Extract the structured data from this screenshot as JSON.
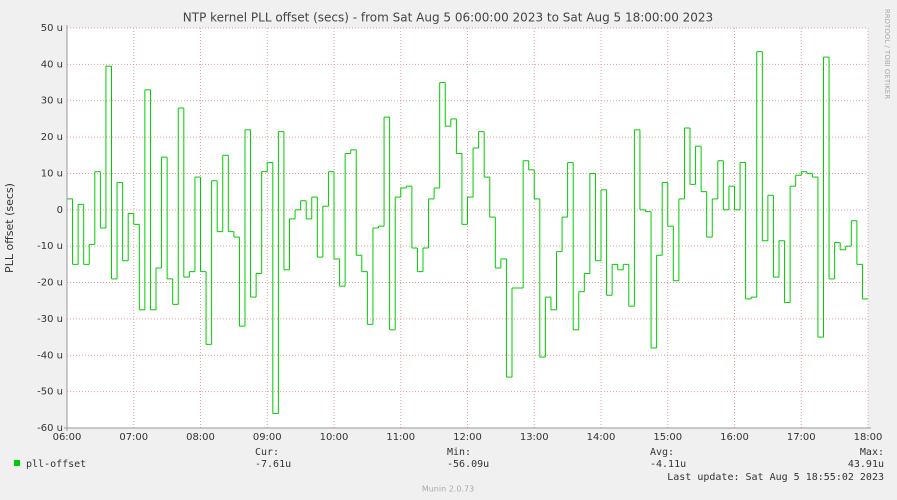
{
  "chart_data": {
    "type": "step-line",
    "title": "NTP kernel PLL offset (secs) - from Sat Aug  5 06:00:00 2023 to Sat Aug  5 18:00:00 2023",
    "y_label": "PLL offset (secs)",
    "side_text": "RRDTOOL / TOBI OETIKER",
    "footer": "Munin 2.0.73",
    "last_update": "Last update: Sat Aug  5 18:55:02 2023",
    "grid": true,
    "xlim": [
      "06:00",
      "18:00"
    ],
    "xticks": [
      "06:00",
      "07:00",
      "08:00",
      "09:00",
      "10:00",
      "11:00",
      "12:00",
      "13:00",
      "14:00",
      "15:00",
      "16:00",
      "17:00",
      "18:00"
    ],
    "ylim": [
      -60,
      50
    ],
    "yticks": [
      {
        "value": -60,
        "label": "-60 u"
      },
      {
        "value": -50,
        "label": "-50 u"
      },
      {
        "value": -40,
        "label": "-40 u"
      },
      {
        "value": -30,
        "label": "-30 u"
      },
      {
        "value": -20,
        "label": "-20 u"
      },
      {
        "value": -10,
        "label": "-10 u"
      },
      0,
      {
        "value": 10,
        "label": "10 u"
      },
      {
        "value": 20,
        "label": "20 u"
      },
      {
        "value": 30,
        "label": "30 u"
      },
      {
        "value": 40,
        "label": "40 u"
      },
      {
        "value": 50,
        "label": "50 u"
      }
    ],
    "x": [
      "06:00",
      "06:05",
      "06:10",
      "06:15",
      "06:20",
      "06:25",
      "06:30",
      "06:35",
      "06:40",
      "06:45",
      "06:50",
      "06:55",
      "07:00",
      "07:05",
      "07:10",
      "07:15",
      "07:20",
      "07:25",
      "07:30",
      "07:35",
      "07:40",
      "07:45",
      "07:50",
      "07:55",
      "08:00",
      "08:05",
      "08:10",
      "08:15",
      "08:20",
      "08:25",
      "08:30",
      "08:35",
      "08:40",
      "08:45",
      "08:50",
      "08:55",
      "09:00",
      "09:05",
      "09:10",
      "09:15",
      "09:20",
      "09:25",
      "09:30",
      "09:35",
      "09:40",
      "09:45",
      "09:50",
      "09:55",
      "10:00",
      "10:05",
      "10:10",
      "10:15",
      "10:20",
      "10:25",
      "10:30",
      "10:35",
      "10:40",
      "10:45",
      "10:50",
      "10:55",
      "11:00",
      "11:05",
      "11:10",
      "11:15",
      "11:20",
      "11:25",
      "11:30",
      "11:35",
      "11:40",
      "11:45",
      "11:50",
      "11:55",
      "12:00",
      "12:05",
      "12:10",
      "12:15",
      "12:20",
      "12:25",
      "12:30",
      "12:35",
      "12:40",
      "12:45",
      "12:50",
      "12:55",
      "13:00",
      "13:05",
      "13:10",
      "13:15",
      "13:20",
      "13:25",
      "13:30",
      "13:35",
      "13:40",
      "13:45",
      "13:50",
      "13:55",
      "14:00",
      "14:05",
      "14:10",
      "14:15",
      "14:20",
      "14:25",
      "14:30",
      "14:35",
      "14:40",
      "14:45",
      "14:50",
      "14:55",
      "15:00",
      "15:05",
      "15:10",
      "15:15",
      "15:20",
      "15:25",
      "15:30",
      "15:35",
      "15:40",
      "15:45",
      "15:50",
      "15:55",
      "16:00",
      "16:05",
      "16:10",
      "16:15",
      "16:20",
      "16:25",
      "16:30",
      "16:35",
      "16:40",
      "16:45",
      "16:50",
      "16:55",
      "17:00",
      "17:05",
      "17:10",
      "17:15",
      "17:20",
      "17:25",
      "17:30",
      "17:35",
      "17:40",
      "17:45",
      "17:50",
      "17:55"
    ],
    "series": [
      {
        "name": "pll-offset",
        "color": "#00cc00",
        "values": [
          3,
          -15,
          1.5,
          -15,
          -9.5,
          10.5,
          -5,
          39.5,
          -19,
          7.5,
          -14,
          -1,
          -4,
          -27.5,
          33,
          -27.5,
          -16,
          14.5,
          -19,
          -26,
          28,
          -18.5,
          -17,
          9,
          -17,
          -37,
          8,
          -6,
          15,
          -6,
          -7.5,
          -32,
          22,
          -24,
          -17.5,
          10.5,
          13,
          -56,
          21.5,
          -16.5,
          -2.5,
          0,
          2.5,
          -2.5,
          3.5,
          -13,
          1,
          10.5,
          -13.5,
          -21,
          15.5,
          16.5,
          -12.5,
          -17,
          -31.5,
          -5,
          -4.5,
          25.5,
          -33,
          3.5,
          6,
          6.5,
          -10.5,
          -17,
          -10.5,
          3,
          6,
          35,
          23,
          25,
          15.5,
          -4,
          3.5,
          17,
          21.5,
          9,
          -2,
          -16,
          -13.5,
          -46,
          -21.5,
          -21.5,
          13.5,
          11,
          3,
          -40.5,
          -24,
          -27.5,
          -11.5,
          -2,
          13,
          -33,
          -22.5,
          -17.5,
          10,
          -14,
          5.5,
          -23.5,
          -15,
          -16.5,
          -15,
          -26.5,
          22,
          0,
          -0.5,
          -38,
          -12.5,
          7.5,
          -4.5,
          -19.5,
          3,
          22.5,
          7,
          17.5,
          5,
          -7.5,
          3,
          13.5,
          0,
          6.5,
          0,
          13,
          -24.5,
          -24,
          43.5,
          -8.5,
          4,
          -18.5,
          -8.5,
          -25.5,
          6.5,
          9.5,
          10.5,
          10,
          9,
          -35,
          42,
          -19,
          -9,
          -11,
          -10,
          -3,
          -15,
          -24.5
        ]
      }
    ],
    "stats": [
      {
        "label": "Cur:",
        "value": "-7.61u"
      },
      {
        "label": "Min:",
        "value": "-56.09u"
      },
      {
        "label": "Avg:",
        "value": "-4.11u"
      },
      {
        "label": "Max:",
        "value": "43.91u"
      }
    ]
  }
}
